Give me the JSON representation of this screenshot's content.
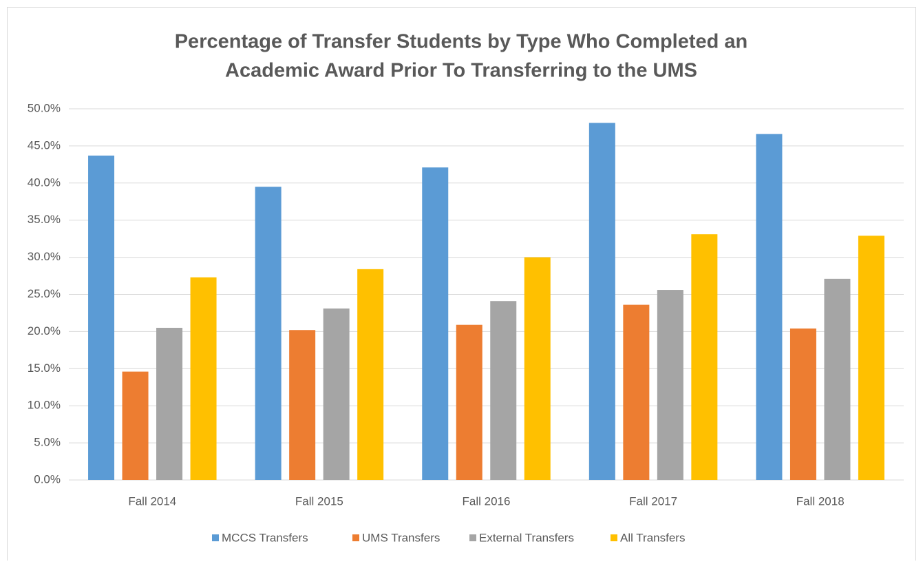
{
  "chart_data": {
    "type": "bar",
    "title": [
      "Percentage of Transfer Students by Type Who Completed an",
      "Academic Award Prior To Transferring to the UMS"
    ],
    "categories": [
      "Fall 2014",
      "Fall 2015",
      "Fall 2016",
      "Fall 2017",
      "Fall 2018"
    ],
    "series": [
      {
        "name": "MCCS Transfers",
        "color": "#5b9bd5",
        "values": [
          43.7,
          39.5,
          42.1,
          48.1,
          46.6
        ]
      },
      {
        "name": "UMS Transfers",
        "color": "#ed7d31",
        "values": [
          14.6,
          20.2,
          20.9,
          23.6,
          20.4
        ]
      },
      {
        "name": "External Transfers",
        "color": "#a5a5a5",
        "values": [
          20.5,
          23.1,
          24.1,
          25.6,
          27.1
        ]
      },
      {
        "name": "All Transfers",
        "color": "#ffc000",
        "values": [
          27.3,
          28.4,
          30.0,
          33.1,
          32.9
        ]
      }
    ],
    "ylim": [
      0,
      50
    ],
    "yticks": [
      {
        "value": 0,
        "label": "0.0%"
      },
      {
        "value": 5,
        "label": "5.0%"
      },
      {
        "value": 10,
        "label": "10.0%"
      },
      {
        "value": 15,
        "label": "15.0%"
      },
      {
        "value": 20,
        "label": "20.0%"
      },
      {
        "value": 25,
        "label": "25.0%"
      },
      {
        "value": 30,
        "label": "30.0%"
      },
      {
        "value": 35,
        "label": "35.0%"
      },
      {
        "value": 40,
        "label": "40.0%"
      },
      {
        "value": 45,
        "label": "45.0%"
      },
      {
        "value": 50,
        "label": "50.0%"
      }
    ],
    "grid": true,
    "legend": "bottom"
  }
}
